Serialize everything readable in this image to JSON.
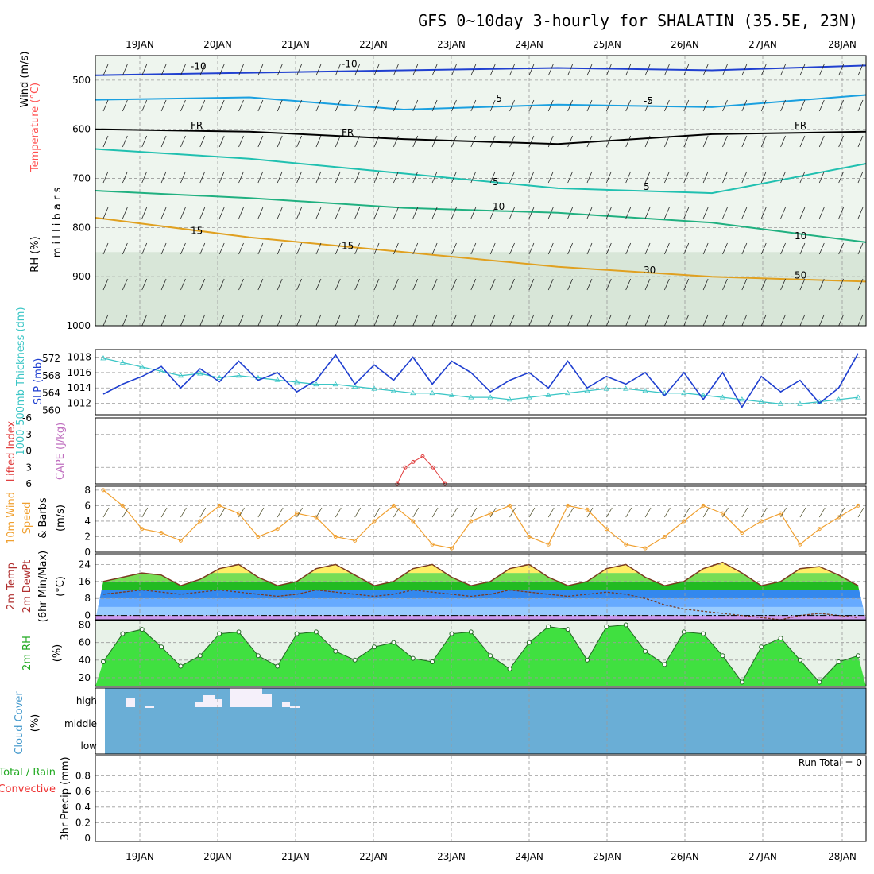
{
  "title": "GFS 0~10day 3-hourly for SHALATIN (35.5E, 23N)",
  "date_labels": [
    "19JAN",
    "20JAN",
    "21JAN",
    "22JAN",
    "23JAN",
    "24JAN",
    "25JAN",
    "26JAN",
    "27JAN",
    "28JAN"
  ],
  "colors": {
    "grid": "#9a9a9a",
    "cloud_fill": "#6aaed6",
    "slp_line": "#1f3fd0",
    "thickness_line": "#3cc6c6",
    "lifted_index": "#e04040",
    "wind_speed": "#f0a030",
    "rh_green": "#22dd22"
  },
  "chart_data": [
    {
      "type": "heatmap",
      "name": "profile",
      "ylabels": [
        "Wind (m/s)",
        "Temperature (°C)",
        "RH (%)",
        "m i l l i b a r s"
      ],
      "ylim": [
        1000,
        450
      ],
      "yticks": [
        500,
        600,
        700,
        800,
        900,
        1000
      ],
      "isotherm_labels": [
        "-10",
        "-10",
        "-5",
        "-5",
        "FR",
        "FR",
        "FR",
        "5",
        "5",
        "10",
        "15",
        "15",
        "10",
        "30",
        "50"
      ],
      "isotherms": [
        {
          "label": "-10",
          "color": "#2040d0",
          "x": [
            0,
            2,
            4,
            6,
            8,
            10
          ],
          "y": [
            490,
            485,
            480,
            475,
            480,
            470
          ]
        },
        {
          "label": "-5",
          "color": "#1aa0e0",
          "x": [
            0,
            2,
            4,
            6,
            8,
            10
          ],
          "y": [
            540,
            535,
            560,
            550,
            555,
            530
          ]
        },
        {
          "label": "FR",
          "color": "#000000",
          "x": [
            0,
            2,
            4,
            6,
            8,
            10
          ],
          "y": [
            600,
            605,
            620,
            630,
            610,
            605
          ]
        },
        {
          "label": "5",
          "color": "#20c0b0",
          "x": [
            0,
            2,
            4,
            6,
            8,
            10
          ],
          "y": [
            640,
            660,
            690,
            720,
            730,
            670
          ]
        },
        {
          "label": "10",
          "color": "#20b080",
          "x": [
            0,
            2,
            4,
            6,
            8,
            10
          ],
          "y": [
            725,
            740,
            760,
            770,
            790,
            830
          ]
        },
        {
          "label": "15",
          "color": "#e0a020",
          "x": [
            0,
            2,
            4,
            6,
            8,
            10
          ],
          "y": [
            780,
            820,
            850,
            880,
            900,
            910
          ]
        }
      ]
    },
    {
      "type": "line",
      "name": "slp",
      "ylabels": [
        "1000-500mb Thickness (dm)",
        "SLP (mb)"
      ],
      "left_ticks": [
        "572",
        "568",
        "564",
        "560"
      ],
      "right_ticks": [
        "1018",
        "1016",
        "1014",
        "1012"
      ],
      "ylim": [
        1010.5,
        1019
      ],
      "series": [
        {
          "name": "SLP",
          "values": [
            1013.2,
            1014.5,
            1015.5,
            1016.8,
            1014,
            1016.5,
            1014.8,
            1017.5,
            1015,
            1016,
            1013.5,
            1015,
            1018.3,
            1014.5,
            1017,
            1015,
            1018,
            1014.5,
            1017.5,
            1016,
            1013.5,
            1015,
            1016,
            1014,
            1017.5,
            1014,
            1015.5,
            1014.5,
            1016,
            1013,
            1016,
            1012.5,
            1016,
            1011.5,
            1015.5,
            1013.5,
            1015,
            1012,
            1014,
            1018.5
          ]
        },
        {
          "name": "Thickness",
          "values": [
            572,
            571,
            570,
            569,
            568,
            568.5,
            567.5,
            568,
            567.5,
            567,
            566.5,
            566,
            566,
            565.5,
            565,
            564.5,
            564,
            564,
            563.5,
            563,
            563,
            562.5,
            563,
            563.5,
            564,
            564.5,
            565,
            565,
            564.5,
            564,
            564,
            563.5,
            563,
            562.5,
            562,
            561.5,
            561.5,
            562,
            562.5,
            563
          ]
        }
      ]
    },
    {
      "type": "line",
      "name": "lifted-index",
      "ylabels": [
        "Lifted Index",
        "CAPE (J/kg)"
      ],
      "left_ticks": [
        "-6",
        "-3",
        "0",
        "3",
        "6"
      ],
      "ylim": [
        -6,
        6
      ]
    },
    {
      "type": "line",
      "name": "wind10m",
      "ylabels": [
        "10m Wind",
        "Speed",
        "& Barbs",
        "(m/s)"
      ],
      "left_ticks": [
        "8",
        "6",
        "4",
        "2",
        "0"
      ],
      "ylim": [
        0,
        8.5
      ],
      "series": [
        {
          "name": "Wind speed",
          "values": [
            8,
            6,
            3,
            2.5,
            1.5,
            4,
            6,
            5,
            2,
            3,
            5,
            4.5,
            2,
            1.5,
            4,
            6,
            4,
            1,
            0.5,
            4,
            5,
            6,
            2,
            1,
            6,
            5.5,
            3,
            1,
            0.5,
            2,
            4,
            6,
            5,
            2.5,
            4,
            5,
            1,
            3,
            4.5,
            6
          ]
        }
      ]
    },
    {
      "type": "area",
      "name": "temp2m",
      "ylabels": [
        "2m Temp",
        "2m DewPt",
        "(6hr Min/Max)",
        "(°C)"
      ],
      "left_ticks": [
        "24",
        "16",
        "8",
        "0"
      ],
      "ylim": [
        -2,
        29
      ],
      "series": [
        {
          "name": "Temp",
          "values": [
            16,
            18,
            20,
            19,
            14,
            17,
            22,
            24,
            18,
            14,
            16,
            22,
            24,
            19,
            14,
            16,
            22,
            24,
            18,
            14,
            16,
            22,
            24,
            18,
            14,
            16,
            22,
            24,
            18,
            14,
            16,
            22,
            25,
            20,
            14,
            16,
            22,
            23,
            19,
            14
          ]
        },
        {
          "name": "DewPt",
          "values": [
            10,
            11,
            12,
            11,
            10,
            11,
            12,
            11,
            10,
            9,
            10,
            12,
            11,
            10,
            9,
            10,
            12,
            11,
            10,
            9,
            10,
            12,
            11,
            10,
            9,
            10,
            11,
            10,
            8,
            5,
            3,
            2,
            1,
            0,
            -1,
            -2,
            0,
            1,
            0,
            -1
          ]
        }
      ]
    },
    {
      "type": "area",
      "name": "rh2m",
      "ylabels": [
        "2m RH",
        "(%)"
      ],
      "left_ticks": [
        "80",
        "60",
        "40",
        "20"
      ],
      "ylim": [
        10,
        85
      ],
      "series": [
        {
          "name": "RH",
          "values": [
            38,
            70,
            75,
            55,
            33,
            45,
            70,
            72,
            45,
            33,
            70,
            72,
            50,
            40,
            55,
            60,
            42,
            38,
            70,
            72,
            45,
            30,
            60,
            78,
            75,
            40,
            78,
            80,
            50,
            35,
            72,
            70,
            45,
            15,
            55,
            65,
            40,
            15,
            38,
            45
          ]
        }
      ]
    },
    {
      "type": "heatmap",
      "name": "cloud",
      "ylabels": [
        "Cloud Cover",
        "(%)"
      ],
      "left_ticks": [
        "high",
        "middle",
        "low"
      ]
    },
    {
      "type": "bar",
      "name": "precip",
      "ylabels": [
        "3hr Precip (mm)",
        "Total / Rain",
        "Convective"
      ],
      "left_ticks": [
        "0.8",
        "0.6",
        "0.4",
        "0.2",
        "0"
      ],
      "ylim": [
        0,
        1
      ],
      "run_total": "Run Total = 0"
    }
  ]
}
